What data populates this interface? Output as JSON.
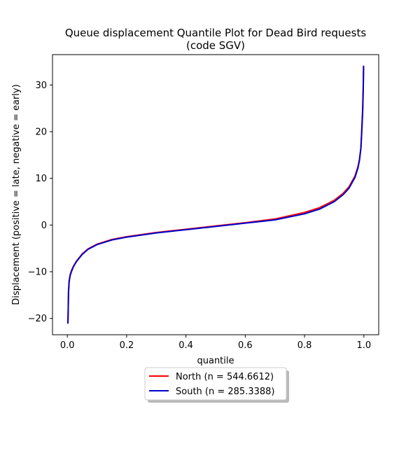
{
  "chart_data": {
    "type": "line",
    "title": "Queue displacement Quantile Plot for Dead Bird  requests",
    "subtitle": "(code SGV)",
    "xlabel": "quantile",
    "ylabel": "Displacement (positive = late, negative = early)",
    "xlim": [
      -0.05,
      1.05
    ],
    "ylim": [
      -23.5,
      36.5
    ],
    "x_ticks": [
      0.0,
      0.2,
      0.4,
      0.6,
      0.8,
      1.0
    ],
    "x_tick_labels": [
      "0.0",
      "0.2",
      "0.4",
      "0.6",
      "0.8",
      "1.0"
    ],
    "y_ticks": [
      -20,
      -10,
      0,
      10,
      20,
      30
    ],
    "y_tick_labels": [
      "−20",
      "−10",
      "0",
      "10",
      "20",
      "30"
    ],
    "grid": false,
    "legend_position": "below-center",
    "series": [
      {
        "name": "North (n = 544.6612)",
        "color": "#ff0000",
        "x": [
          0.002,
          0.003,
          0.004,
          0.006,
          0.008,
          0.01,
          0.015,
          0.02,
          0.03,
          0.05,
          0.07,
          0.1,
          0.15,
          0.2,
          0.3,
          0.4,
          0.5,
          0.6,
          0.7,
          0.8,
          0.85,
          0.9,
          0.93,
          0.95,
          0.97,
          0.98,
          0.985,
          0.99,
          0.993,
          0.996,
          0.998,
          0.999
        ],
        "y": [
          -21,
          -18,
          -14,
          -12,
          -11.2,
          -10.5,
          -9.6,
          -8.9,
          -7.8,
          -6.2,
          -5.1,
          -4.1,
          -3.1,
          -2.5,
          -1.6,
          -0.9,
          -0.2,
          0.5,
          1.3,
          2.7,
          3.7,
          5.3,
          6.8,
          8.2,
          10.5,
          12.5,
          14,
          16.5,
          20,
          24,
          29,
          34
        ]
      },
      {
        "name": "South (n = 285.3388)",
        "color": "#0000cc",
        "x": [
          0.002,
          0.003,
          0.004,
          0.006,
          0.008,
          0.01,
          0.015,
          0.02,
          0.03,
          0.05,
          0.07,
          0.1,
          0.15,
          0.2,
          0.3,
          0.4,
          0.5,
          0.6,
          0.7,
          0.8,
          0.85,
          0.9,
          0.93,
          0.95,
          0.97,
          0.98,
          0.985,
          0.99,
          0.993,
          0.996,
          0.998,
          0.999
        ],
        "y": [
          -21,
          -18,
          -14.5,
          -12.3,
          -11.4,
          -10.7,
          -9.8,
          -9.0,
          -7.9,
          -6.3,
          -5.2,
          -4.2,
          -3.2,
          -2.6,
          -1.7,
          -1.0,
          -0.3,
          0.4,
          1.1,
          2.4,
          3.4,
          5.0,
          6.5,
          7.9,
          10.2,
          12.2,
          13.8,
          16.5,
          20.5,
          25,
          30,
          34
        ]
      }
    ]
  }
}
